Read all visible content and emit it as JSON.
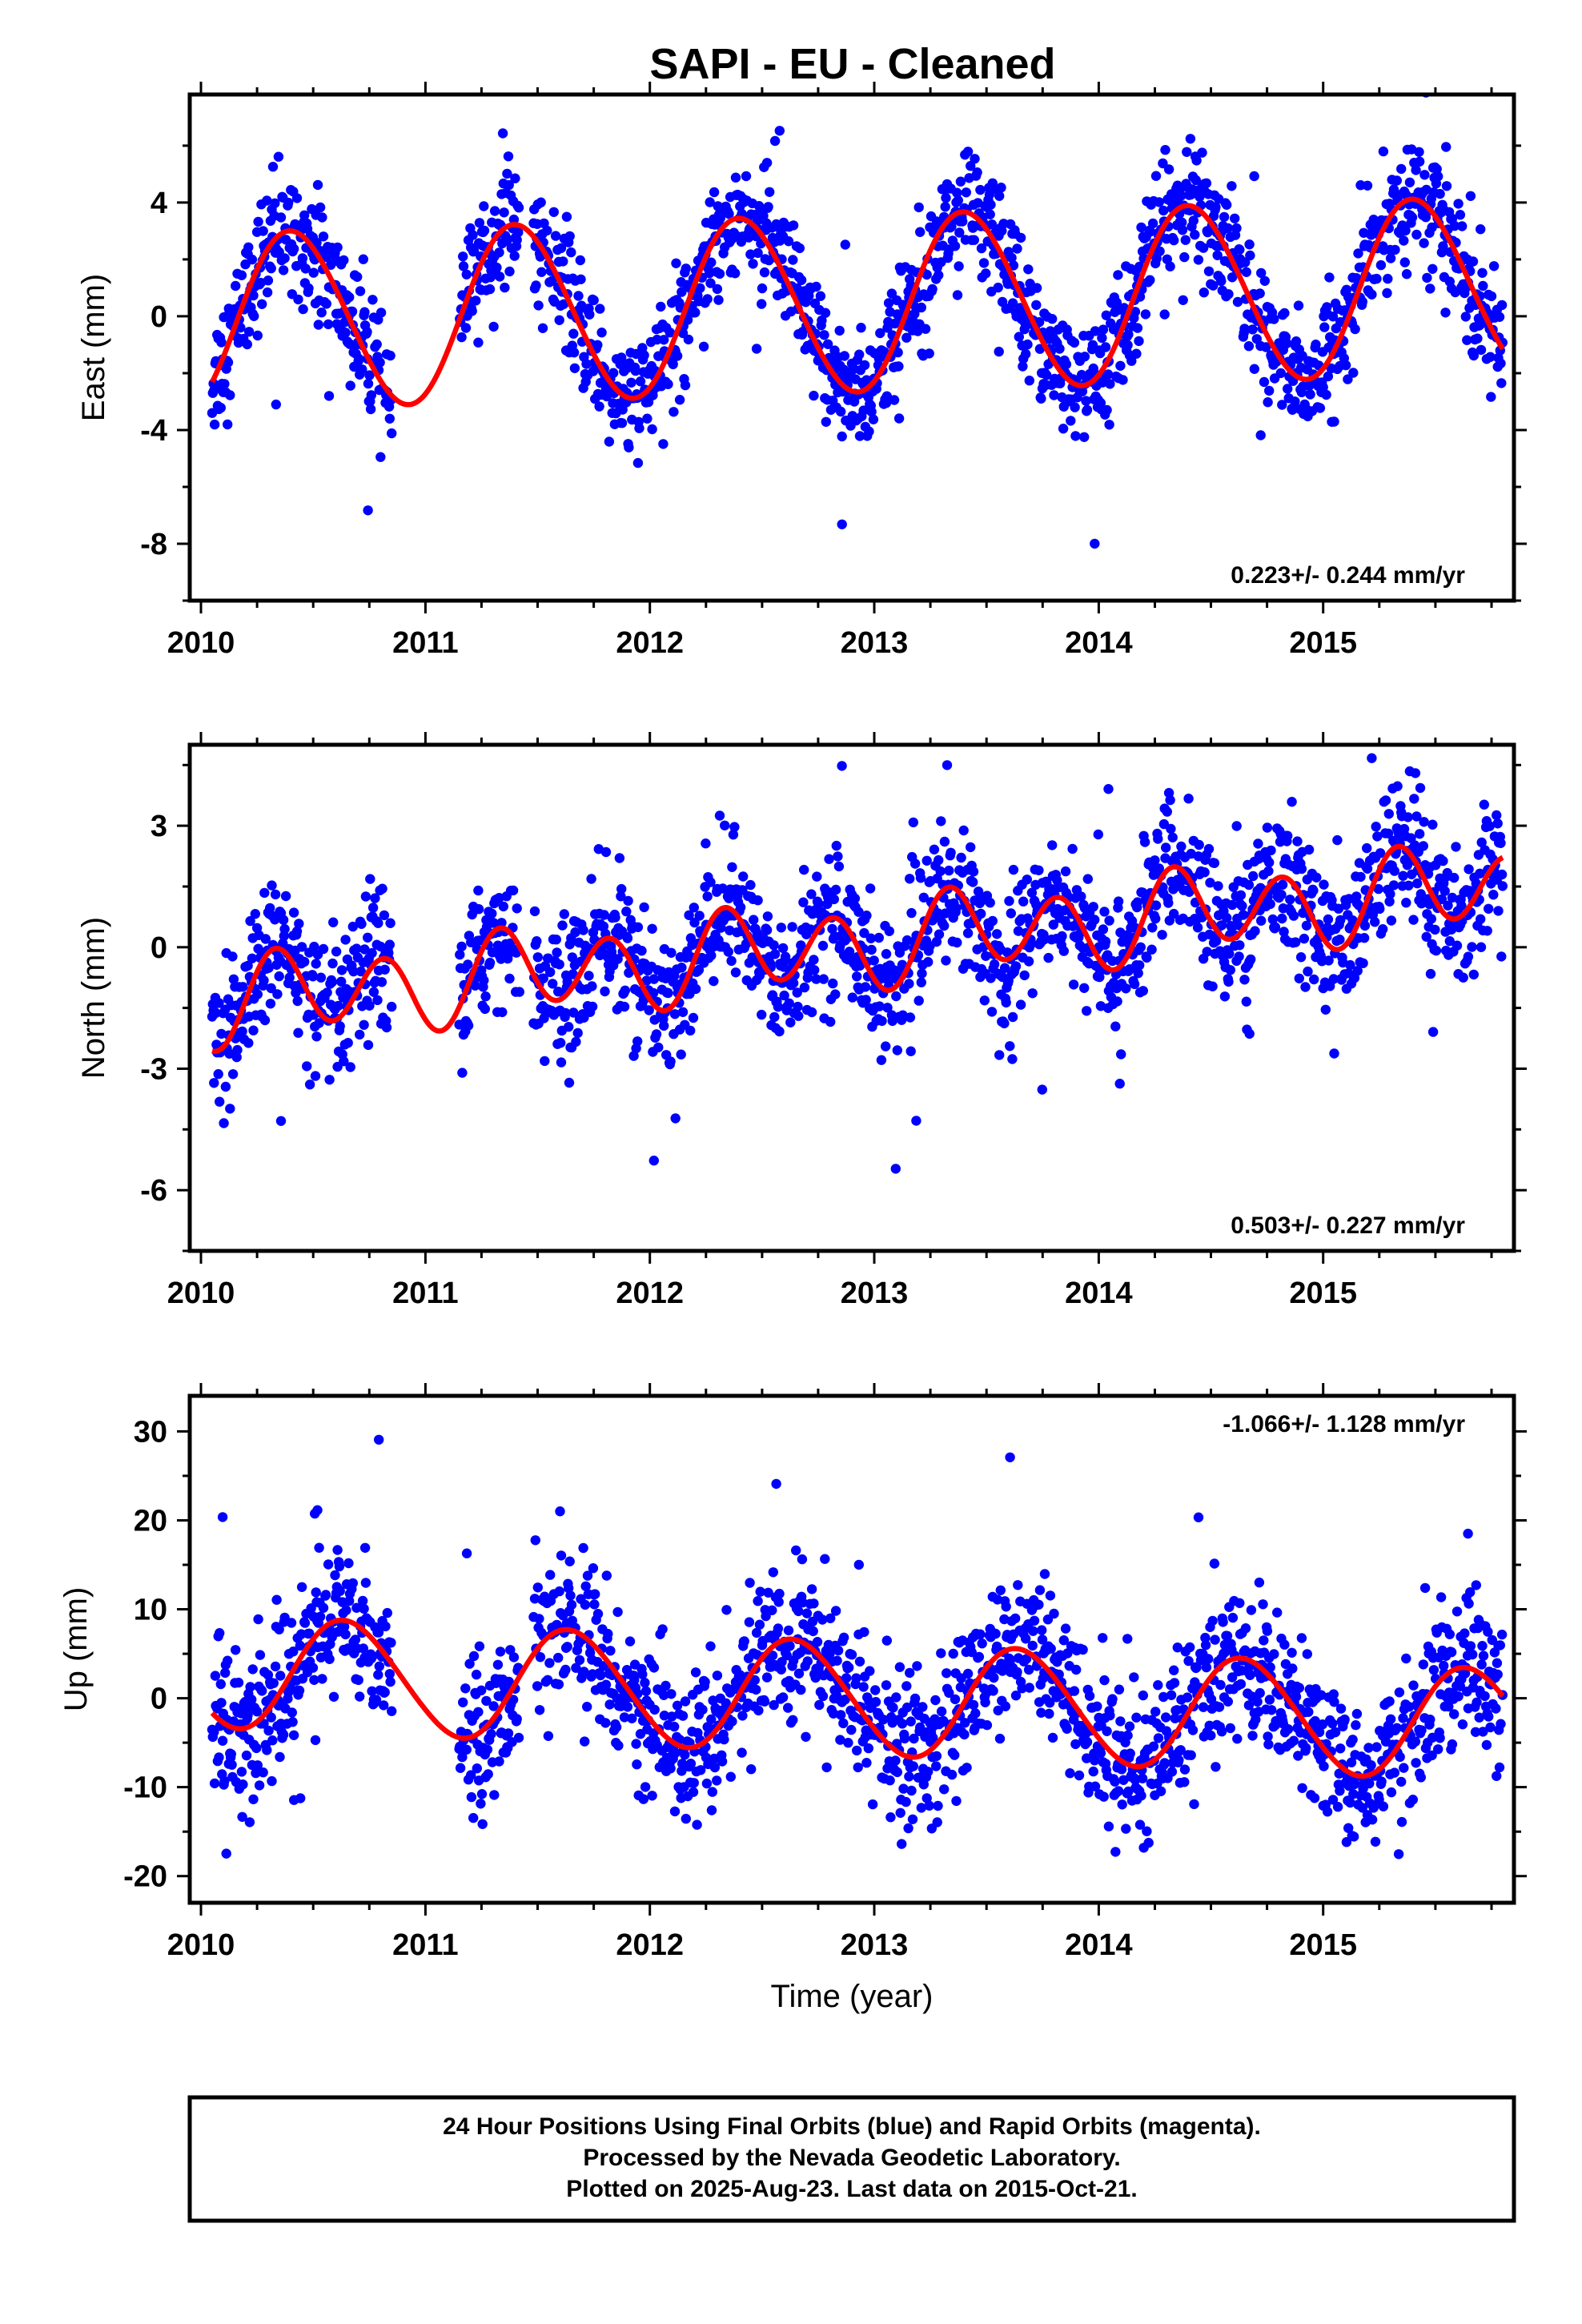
{
  "chart_data": [
    {
      "type": "scatter",
      "panel": "east",
      "title": "SAPI  - EU - Cleaned",
      "xlabel": "",
      "ylabel": "East (mm)",
      "xlim": [
        2009.95,
        2015.85
      ],
      "ylim": [
        -10,
        7.8
      ],
      "yticks": [
        -8,
        -4,
        0,
        4
      ],
      "xticks": [
        2010,
        2011,
        2012,
        2013,
        2014,
        2015
      ],
      "rate_text": "0.223+/- 0.244 mm/yr",
      "rate_position": "bottom-right",
      "grid": false,
      "fit": {
        "trend": -0.2,
        "slope": 0.223,
        "annual_amp": 3.1,
        "annual_phase": 2010.16,
        "semiannual_amp": 0.15
      },
      "scatter": {
        "noise": 1.05,
        "outlier_count": 12
      },
      "series": [
        {
          "name": "",
          "color": "#0000ff"
        },
        {
          "name": "",
          "color": "#ff0000"
        }
      ]
    },
    {
      "type": "scatter",
      "panel": "north",
      "xlabel": "",
      "ylabel": "North (mm)",
      "xlim": [
        2009.95,
        2015.85
      ],
      "ylim": [
        -7.5,
        5
      ],
      "yticks": [
        -6,
        -3,
        0,
        3
      ],
      "xticks": [
        2010,
        2011,
        2012,
        2013,
        2014,
        2015
      ],
      "rate_text": "0.503+/- 0.227 mm/yr",
      "rate_position": "bottom-right",
      "grid": false,
      "fit": {
        "trend": -1.4,
        "slope": 0.503,
        "annual_amp": 0.35,
        "annual_phase": 2010.2,
        "semiannual_amp": 0.95
      },
      "scatter": {
        "noise": 0.85,
        "outlier_count": 10
      },
      "series": [
        {
          "name": "",
          "color": "#0000ff"
        },
        {
          "name": "",
          "color": "#ff0000"
        }
      ]
    },
    {
      "type": "scatter",
      "panel": "up",
      "xlabel": "Time (year)",
      "ylabel": "Up (mm)",
      "xlim": [
        2009.95,
        2015.85
      ],
      "ylim": [
        -23,
        34
      ],
      "yticks": [
        -20,
        -10,
        0,
        10,
        20,
        30
      ],
      "xticks": [
        2010,
        2011,
        2012,
        2013,
        2014,
        2015
      ],
      "rate_text": "-1.066+/- 1.128 mm/yr",
      "rate_position": "top-right",
      "grid": false,
      "fit": {
        "trend": 3.1,
        "slope": -1.066,
        "annual_amp": 6.3,
        "annual_phase": 2010.4,
        "semiannual_amp": 0.4
      },
      "scatter": {
        "noise": 4.2,
        "outlier_count": 14
      },
      "series": [
        {
          "name": "",
          "color": "#0000ff"
        },
        {
          "name": "",
          "color": "#ff0000"
        }
      ]
    }
  ],
  "data_gaps": [
    [
      2010.85,
      2011.15
    ],
    [
      2011.42,
      2011.48
    ]
  ],
  "footer": {
    "line1": "24 Hour Positions Using Final Orbits (blue) and Rapid Orbits (magenta).",
    "line2": "Processed by the Nevada Geodetic Laboratory.",
    "line3": "Plotted on 2025-Aug-23. Last data on 2015-Oct-21."
  },
  "colors": {
    "data_points": "#0000ff",
    "model_fit": "#ff0000",
    "frame": "#000000"
  }
}
